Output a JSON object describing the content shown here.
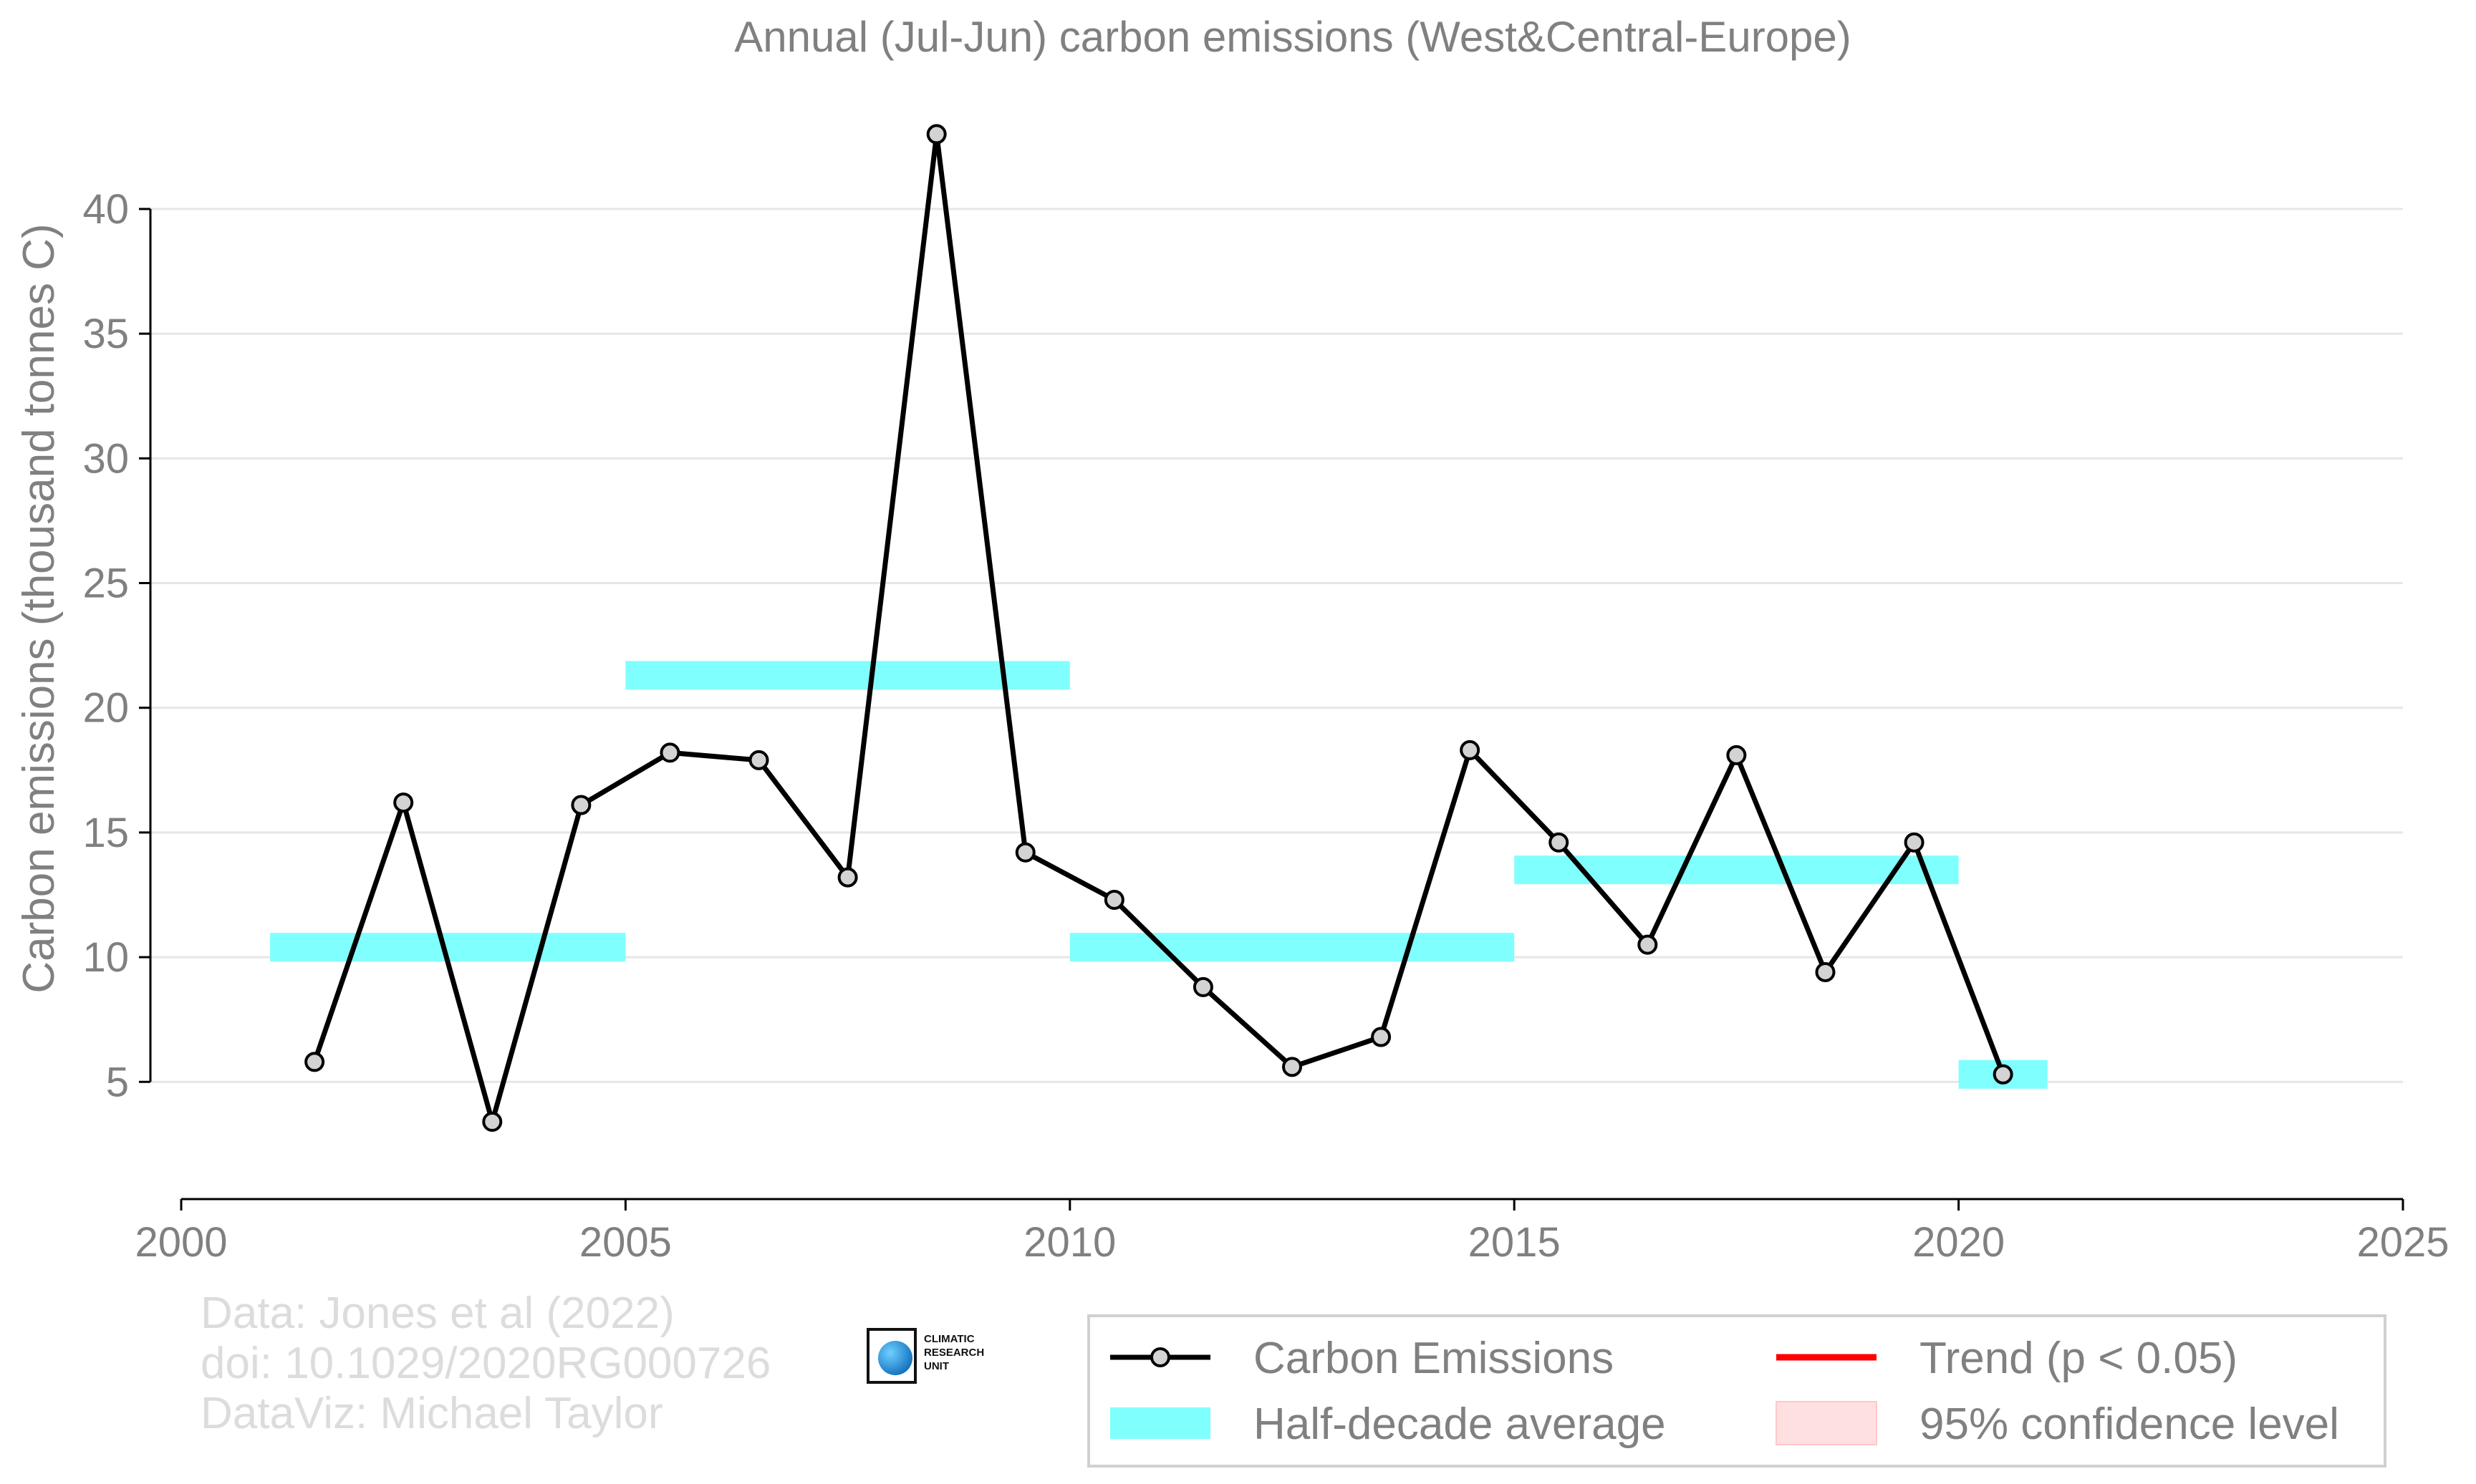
{
  "chart_data": {
    "type": "line",
    "title": "Annual (Jul-Jun) carbon emissions (West&Central-Europe)",
    "xlabel": "",
    "ylabel": "Carbon emissions (thousand tonnes C)",
    "xlim": [
      2000,
      2025
    ],
    "ylim": [
      0.3,
      43.5
    ],
    "x_ticks": [
      2000,
      2005,
      2010,
      2015,
      2020,
      2025
    ],
    "y_ticks": [
      5,
      10,
      15,
      20,
      25,
      30,
      35,
      40
    ],
    "grid": "horizontal",
    "legend_position": "bottom-right",
    "series": [
      {
        "name": "Carbon Emissions",
        "color": "#000000",
        "marker_fill": "#d3d3d3",
        "x": [
          2001.5,
          2002.5,
          2003.5,
          2004.5,
          2005.5,
          2006.5,
          2007.5,
          2008.5,
          2009.5,
          2010.5,
          2011.5,
          2012.5,
          2013.5,
          2014.5,
          2015.5,
          2016.5,
          2017.5,
          2018.5,
          2019.5,
          2020.5
        ],
        "values": [
          5.8,
          16.2,
          3.4,
          16.1,
          18.2,
          17.9,
          13.2,
          43.0,
          14.2,
          12.3,
          8.8,
          5.6,
          6.8,
          18.3,
          14.6,
          10.5,
          18.1,
          9.4,
          14.6,
          5.3
        ]
      }
    ],
    "half_decade_average": {
      "name": "Half-decade average",
      "color": "#80ffff",
      "segments": [
        {
          "x_start": 2001,
          "x_end": 2005,
          "value": 10.4
        },
        {
          "x_start": 2005,
          "x_end": 2010,
          "value": 21.3
        },
        {
          "x_start": 2010,
          "x_end": 2015,
          "value": 10.4
        },
        {
          "x_start": 2015,
          "x_end": 2020,
          "value": 13.5
        },
        {
          "x_start": 2020,
          "x_end": 2021,
          "value": 5.3
        }
      ]
    },
    "legend": [
      {
        "label": "Carbon Emissions",
        "kind": "line-marker",
        "color": "#000000"
      },
      {
        "label": "Trend (p < 0.05)",
        "kind": "line",
        "color": "#ff0000"
      },
      {
        "label": "Half-decade average",
        "kind": "band",
        "color": "#80ffff"
      },
      {
        "label": "95% confidence level",
        "kind": "patch",
        "color": "#ffe0e0"
      }
    ]
  },
  "credits": {
    "line1": "Data: Jones et al (2022)",
    "line2": "doi: 10.1029/2020RG000726",
    "line3": "DataViz: Michael Taylor"
  },
  "logo": {
    "text": "CLIMATIC\nRESEARCH\nUNIT",
    "icon": "globe-icon"
  }
}
